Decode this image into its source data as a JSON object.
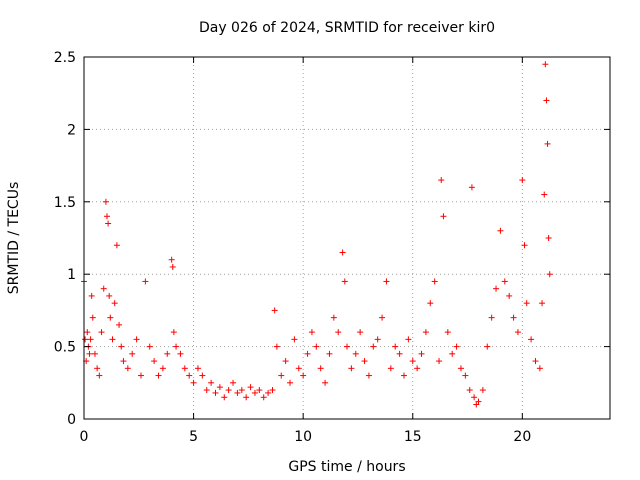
{
  "chart_data": {
    "type": "scatter",
    "title": "Day 026 of 2024, SRMTID for receiver kir0",
    "xlabel": "GPS time / hours",
    "ylabel": "SRMTID / TECUs",
    "xlim": [
      0,
      24
    ],
    "ylim": [
      0,
      2.5
    ],
    "grid": true,
    "marker": "+",
    "color": "#ff0000",
    "xticks": [
      {
        "value": 0,
        "label": "0"
      },
      {
        "value": 5,
        "label": "5"
      },
      {
        "value": 10,
        "label": "10"
      },
      {
        "value": 15,
        "label": "15"
      },
      {
        "value": 20,
        "label": "20"
      }
    ],
    "yticks": [
      {
        "value": 0,
        "label": "0"
      },
      {
        "value": 0.5,
        "label": "0.5"
      },
      {
        "value": 1,
        "label": "1"
      },
      {
        "value": 1.5,
        "label": "1.5"
      },
      {
        "value": 2,
        "label": "2"
      },
      {
        "value": 2.5,
        "label": "2.5"
      }
    ],
    "series": [
      {
        "name": "SRMTID",
        "x": [
          0.0,
          0.05,
          0.1,
          0.15,
          0.2,
          0.25,
          0.3,
          0.35,
          0.4,
          0.5,
          0.6,
          0.7,
          0.8,
          0.9,
          1.0,
          1.05,
          1.1,
          1.15,
          1.2,
          1.3,
          1.4,
          1.5,
          1.6,
          1.7,
          1.8,
          2.0,
          2.2,
          2.4,
          2.6,
          2.8,
          3.0,
          3.2,
          3.4,
          3.6,
          3.8,
          4.0,
          4.05,
          4.1,
          4.2,
          4.4,
          4.6,
          4.8,
          5.0,
          5.2,
          5.4,
          5.6,
          5.8,
          6.0,
          6.2,
          6.4,
          6.6,
          6.8,
          7.0,
          7.2,
          7.4,
          7.6,
          7.8,
          8.0,
          8.2,
          8.4,
          8.6,
          8.7,
          8.8,
          9.0,
          9.2,
          9.4,
          9.6,
          9.8,
          10.0,
          10.2,
          10.4,
          10.6,
          10.8,
          11.0,
          11.2,
          11.4,
          11.6,
          11.8,
          11.9,
          12.0,
          12.2,
          12.4,
          12.6,
          12.8,
          13.0,
          13.2,
          13.4,
          13.6,
          13.8,
          14.0,
          14.2,
          14.4,
          14.6,
          14.8,
          15.0,
          15.2,
          15.4,
          15.6,
          15.8,
          16.0,
          16.2,
          16.3,
          16.4,
          16.6,
          16.8,
          17.0,
          17.2,
          17.4,
          17.6,
          17.7,
          17.8,
          17.9,
          18.0,
          18.2,
          18.4,
          18.6,
          18.8,
          19.0,
          19.2,
          19.4,
          19.6,
          19.8,
          20.0,
          20.1,
          20.2,
          20.4,
          20.6,
          20.8,
          20.9,
          21.0,
          21.05,
          21.1,
          21.15,
          21.2,
          21.25
        ],
        "y": [
          0.95,
          0.55,
          0.4,
          0.6,
          0.5,
          0.45,
          0.55,
          0.85,
          0.7,
          0.45,
          0.35,
          0.3,
          0.6,
          0.9,
          1.5,
          1.4,
          1.35,
          0.85,
          0.7,
          0.55,
          0.8,
          1.2,
          0.65,
          0.5,
          0.4,
          0.35,
          0.45,
          0.55,
          0.3,
          0.95,
          0.5,
          0.4,
          0.3,
          0.35,
          0.45,
          1.1,
          1.05,
          0.6,
          0.5,
          0.45,
          0.35,
          0.3,
          0.25,
          0.35,
          0.3,
          0.2,
          0.25,
          0.18,
          0.22,
          0.15,
          0.2,
          0.25,
          0.18,
          0.2,
          0.15,
          0.22,
          0.18,
          0.2,
          0.15,
          0.18,
          0.2,
          0.75,
          0.5,
          0.3,
          0.4,
          0.25,
          0.55,
          0.35,
          0.3,
          0.45,
          0.6,
          0.5,
          0.35,
          0.25,
          0.45,
          0.7,
          0.6,
          1.15,
          0.95,
          0.5,
          0.35,
          0.45,
          0.6,
          0.4,
          0.3,
          0.5,
          0.55,
          0.7,
          0.95,
          0.35,
          0.5,
          0.45,
          0.3,
          0.55,
          0.4,
          0.35,
          0.45,
          0.6,
          0.8,
          0.95,
          0.4,
          1.65,
          1.4,
          0.6,
          0.45,
          0.5,
          0.35,
          0.3,
          0.2,
          1.6,
          0.15,
          0.1,
          0.12,
          0.2,
          0.5,
          0.7,
          0.9,
          1.3,
          0.95,
          0.85,
          0.7,
          0.6,
          1.65,
          1.2,
          0.8,
          0.55,
          0.4,
          0.35,
          0.8,
          1.55,
          2.45,
          2.2,
          1.9,
          1.25,
          1.0
        ]
      }
    ]
  }
}
